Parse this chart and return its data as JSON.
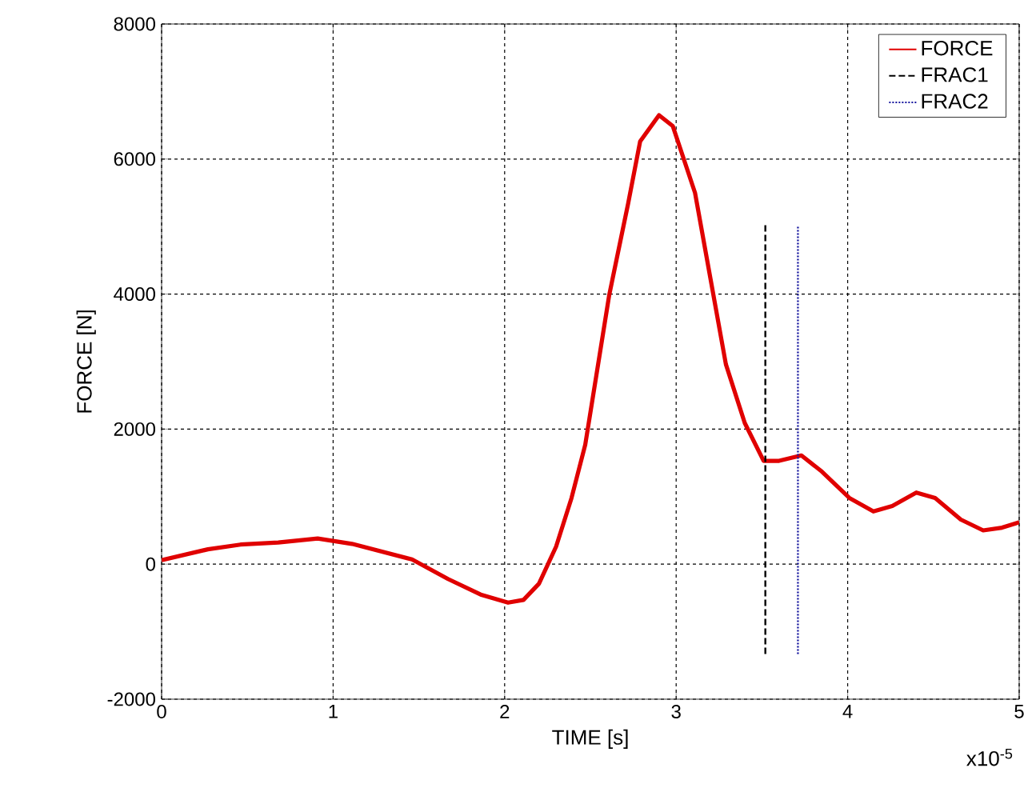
{
  "chart_data": {
    "type": "line",
    "xlabel": "TIME [s]",
    "ylabel": "FORCE [N]",
    "xlim": [
      0,
      5
    ],
    "xticks": [
      0,
      1,
      2,
      3,
      4,
      5
    ],
    "ylim": [
      -2000,
      8000
    ],
    "yticks": [
      -2000,
      0,
      2000,
      4000,
      6000,
      8000
    ],
    "grid": true,
    "legend": "top right",
    "annotations": [
      "x10$^{-5}$"
    ],
    "series": [
      {
        "name": "FORCE",
        "color": "#e00000",
        "line_style": "solid",
        "x": [
          0,
          0.27,
          0.46,
          0.68,
          0.91,
          1.11,
          1.46,
          1.67,
          1.86,
          2.02,
          2.11,
          2.2,
          2.3,
          2.39,
          2.47,
          2.61,
          2.72,
          2.79,
          2.9,
          2.98,
          3.11,
          3.2,
          3.29,
          3.4,
          3.51,
          3.6,
          3.73,
          3.85,
          4.01,
          4.15,
          4.26,
          4.4,
          4.51,
          4.66,
          4.79,
          4.9,
          5
        ],
        "values": [
          60,
          220,
          290,
          320,
          380,
          300,
          70,
          -220,
          -450,
          -570,
          -530,
          -290,
          260,
          980,
          1770,
          3990,
          5340,
          6260,
          6650,
          6490,
          5500,
          4230,
          2960,
          2090,
          1530,
          1530,
          1610,
          1370,
          980,
          780,
          860,
          1060,
          980,
          660,
          500,
          540,
          620
        ]
      },
      {
        "name": "FRAC1",
        "color": "#000000",
        "line_style": "dashed",
        "x": [
          3.52,
          3.52
        ],
        "values": [
          -1330,
          5020
        ]
      },
      {
        "name": "FRAC2",
        "color": "#1a1aa0",
        "line_style": "dotted",
        "x": [
          3.71,
          3.71
        ],
        "values": [
          -1330,
          5020
        ]
      }
    ]
  }
}
